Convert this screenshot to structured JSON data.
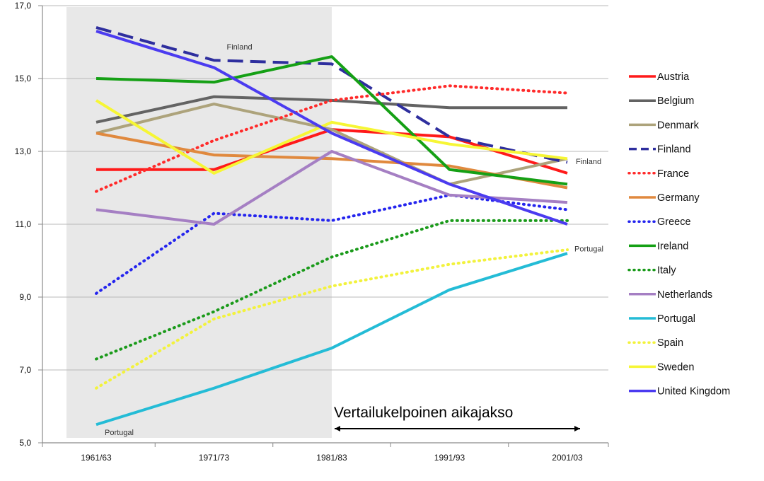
{
  "chart_data": {
    "type": "line",
    "title": "",
    "xlabel": "",
    "ylabel": "",
    "categories": [
      "1961/63",
      "1971/73",
      "1981/83",
      "1991/93",
      "2001/03"
    ],
    "y_ticks": [
      "5,0",
      "7,0",
      "9,0",
      "11,0",
      "13,0",
      "15,0",
      "17,0"
    ],
    "y_tick_values": [
      5,
      7,
      9,
      11,
      13,
      15,
      17
    ],
    "ylim": [
      5,
      17
    ],
    "grid": "horizontal",
    "legend_position": "right",
    "shaded_period": {
      "from": "1961/63",
      "to": "1981/83",
      "color": "#e8e8e8"
    },
    "comparison_period": {
      "label": "Vertailukelpoinen aikajakso",
      "from": "1981/83",
      "to": "2001/03"
    },
    "series": [
      {
        "name": "Austria",
        "color": "#ff1a1a",
        "style": "solid",
        "values": [
          12.5,
          12.5,
          13.6,
          13.4,
          12.4
        ]
      },
      {
        "name": "Belgium",
        "color": "#636363",
        "style": "solid",
        "values": [
          13.8,
          14.5,
          14.4,
          14.2,
          14.2
        ]
      },
      {
        "name": "Denmark",
        "color": "#ada37b",
        "style": "solid",
        "values": [
          13.5,
          14.3,
          13.6,
          12.1,
          12.8
        ]
      },
      {
        "name": "Finland",
        "color": "#2e2e9e",
        "style": "dashed",
        "values": [
          16.4,
          15.5,
          15.4,
          13.4,
          12.7
        ]
      },
      {
        "name": "France",
        "color": "#ff2a2a",
        "style": "dotted",
        "values": [
          11.9,
          13.3,
          14.4,
          14.8,
          14.6
        ]
      },
      {
        "name": "Germany",
        "color": "#e0893e",
        "style": "solid",
        "values": [
          13.5,
          12.9,
          12.8,
          12.6,
          12.0
        ]
      },
      {
        "name": "Greece",
        "color": "#2424ee",
        "style": "dotted",
        "values": [
          9.1,
          11.3,
          11.1,
          11.8,
          11.4
        ]
      },
      {
        "name": "Ireland",
        "color": "#15a015",
        "style": "solid",
        "values": [
          15.0,
          14.9,
          15.6,
          12.5,
          12.1
        ]
      },
      {
        "name": "Italy",
        "color": "#1a9a1a",
        "style": "dotted",
        "values": [
          7.3,
          8.6,
          10.1,
          11.1,
          11.1
        ]
      },
      {
        "name": "Netherlands",
        "color": "#a57fc3",
        "style": "solid",
        "values": [
          11.4,
          11.0,
          13.0,
          11.8,
          11.6
        ]
      },
      {
        "name": "Portugal",
        "color": "#24bcd6",
        "style": "solid",
        "values": [
          5.5,
          6.5,
          7.6,
          9.2,
          10.2
        ]
      },
      {
        "name": "Spain",
        "color": "#f2f23c",
        "style": "dotted",
        "values": [
          6.5,
          8.4,
          9.3,
          9.9,
          10.3
        ]
      },
      {
        "name": "Sweden",
        "color": "#f6f635",
        "style": "solid",
        "values": [
          14.4,
          12.4,
          13.8,
          13.2,
          12.8
        ]
      },
      {
        "name": "United Kingdom",
        "color": "#4b3bf0",
        "style": "solid",
        "values": [
          16.3,
          15.3,
          13.5,
          12.1,
          11.0
        ]
      }
    ],
    "annotations": [
      {
        "text": "Finland",
        "x": "1971/73",
        "y": 15.8
      },
      {
        "text": "Finland",
        "x": "2001/03",
        "y": 12.65
      },
      {
        "text": "Portugal",
        "x": "2001/03",
        "y": 10.25
      },
      {
        "text": "Portugal",
        "x": "1961/63",
        "y": 5.45
      }
    ]
  }
}
